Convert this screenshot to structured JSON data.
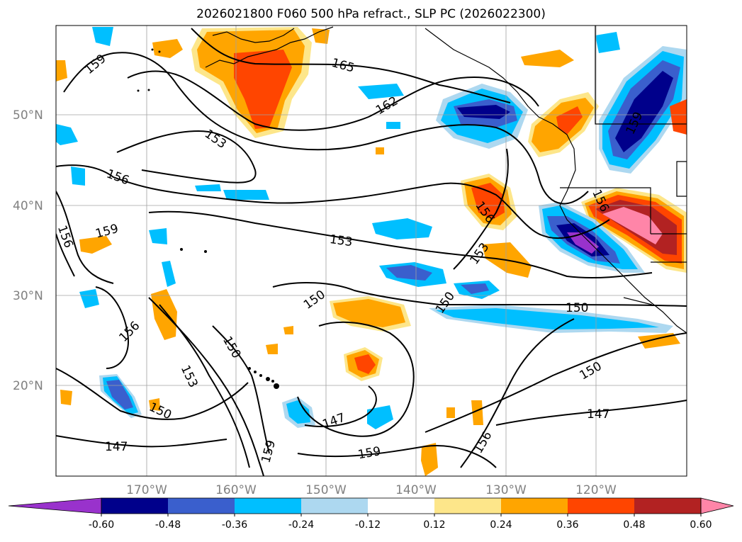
{
  "title": "2026021800 F060 500 hPa refract., SLP PC (2026022300)",
  "lat_labels": [
    "50°N",
    "40°N",
    "30°N",
    "20°N"
  ],
  "lon_labels": [
    "170°W",
    "160°W",
    "150°W",
    "140°W",
    "130°W",
    "120°W"
  ],
  "contour_labels": [
    "159",
    "165",
    "162",
    "153",
    "156",
    "156",
    "159",
    "153",
    "156",
    "153",
    "156",
    "159",
    "156",
    "150",
    "150",
    "150",
    "150",
    "153",
    "150",
    "147",
    "150",
    "147",
    "147",
    "159",
    "159",
    "156"
  ],
  "colorbar": {
    "ticks": [
      "-0.60",
      "-0.48",
      "-0.36",
      "-0.24",
      "-0.12",
      "0.12",
      "0.24",
      "0.36",
      "0.48",
      "0.60"
    ],
    "colors": [
      "#9932cc",
      "#00008b",
      "#3a5fcd",
      "#00bfff",
      "#add8f0",
      "#ffffff",
      "#fde68a",
      "#ffa500",
      "#ff4500",
      "#b22222",
      "#ff85a8"
    ]
  }
}
